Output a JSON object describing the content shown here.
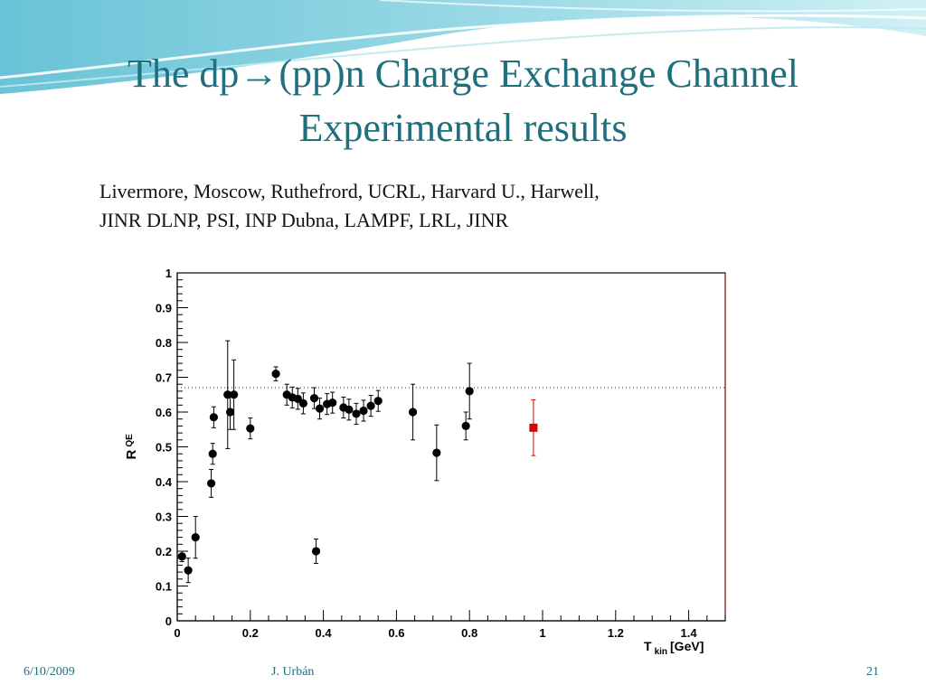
{
  "slide": {
    "title_line1": "The dp→(pp)n Charge Exchange Channel",
    "title_line2": "Experimental results",
    "sources_line1": "Livermore, Moscow, Ruthefrord, UCRL, Harvard U., Harwell,",
    "sources_line2": "JINR DLNP, PSI, INP Dubna, LAMPF, LRL, JINR",
    "footer_date": "6/10/2009",
    "footer_author": "J. Urbán",
    "footer_page": "21"
  },
  "colors": {
    "title": "#1f6f7d",
    "points": "#000000",
    "highlight_point": "#e00000",
    "frame": "#7a0000"
  },
  "chart_data": {
    "type": "scatter",
    "xlabel_main": "T",
    "xlabel_sub": "kin",
    "xlabel_unit": "[GeV]",
    "ylabel_main": "R",
    "ylabel_sub": "QE",
    "xlim": [
      0,
      1.5
    ],
    "ylim": [
      0,
      1
    ],
    "x_ticks": [
      "0",
      "0.2",
      "0.4",
      "0.6",
      "0.8",
      "1",
      "1.2",
      "1.4"
    ],
    "y_ticks": [
      "0",
      "0.1",
      "0.2",
      "0.3",
      "0.4",
      "0.5",
      "0.6",
      "0.7",
      "0.8",
      "0.9",
      "1"
    ],
    "reference_line_y": 0.67,
    "grid": false,
    "series": [
      {
        "marker": "circle",
        "points": [
          {
            "x": 0.013,
            "y": 0.185,
            "err": 0.015
          },
          {
            "x": 0.03,
            "y": 0.145,
            "err": 0.035
          },
          {
            "x": 0.05,
            "y": 0.24,
            "err": 0.06
          },
          {
            "x": 0.093,
            "y": 0.395,
            "err": 0.04
          },
          {
            "x": 0.097,
            "y": 0.48,
            "err": 0.03
          },
          {
            "x": 0.1,
            "y": 0.585,
            "err": 0.03
          },
          {
            "x": 0.138,
            "y": 0.65,
            "err": 0.155
          },
          {
            "x": 0.145,
            "y": 0.6,
            "err": 0.05
          },
          {
            "x": 0.155,
            "y": 0.65,
            "err": 0.1
          },
          {
            "x": 0.2,
            "y": 0.553,
            "err": 0.03
          },
          {
            "x": 0.27,
            "y": 0.71,
            "err": 0.02
          },
          {
            "x": 0.3,
            "y": 0.65,
            "err": 0.03
          },
          {
            "x": 0.315,
            "y": 0.642,
            "err": 0.03
          },
          {
            "x": 0.33,
            "y": 0.638,
            "err": 0.03
          },
          {
            "x": 0.345,
            "y": 0.625,
            "err": 0.03
          },
          {
            "x": 0.375,
            "y": 0.64,
            "err": 0.03
          },
          {
            "x": 0.38,
            "y": 0.2,
            "err": 0.035
          },
          {
            "x": 0.39,
            "y": 0.61,
            "err": 0.03
          },
          {
            "x": 0.41,
            "y": 0.623,
            "err": 0.03
          },
          {
            "x": 0.425,
            "y": 0.627,
            "err": 0.03
          },
          {
            "x": 0.455,
            "y": 0.613,
            "err": 0.03
          },
          {
            "x": 0.47,
            "y": 0.607,
            "err": 0.03
          },
          {
            "x": 0.49,
            "y": 0.595,
            "err": 0.03
          },
          {
            "x": 0.51,
            "y": 0.604,
            "err": 0.03
          },
          {
            "x": 0.53,
            "y": 0.618,
            "err": 0.03
          },
          {
            "x": 0.55,
            "y": 0.632,
            "err": 0.03
          },
          {
            "x": 0.645,
            "y": 0.6,
            "err": 0.08
          },
          {
            "x": 0.71,
            "y": 0.483,
            "err": 0.08
          },
          {
            "x": 0.79,
            "y": 0.56,
            "err": 0.04
          },
          {
            "x": 0.8,
            "y": 0.66,
            "err": 0.08
          }
        ]
      },
      {
        "marker": "square",
        "points": [
          {
            "x": 0.975,
            "y": 0.555,
            "err": 0.08
          }
        ]
      }
    ]
  }
}
